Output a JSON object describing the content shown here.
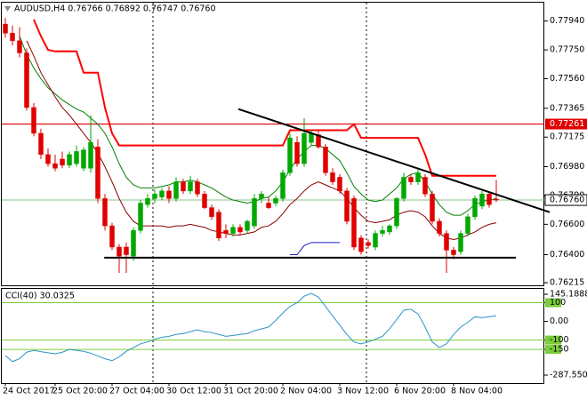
{
  "chart_data": [
    {
      "type": "candlestick",
      "title": "AUDUSD,H4 0.76766 0.76892 0.76747 0.76760",
      "categories": [
        "24 Oct 2017",
        null,
        null,
        null,
        null,
        null,
        null,
        "25 Oct 20:00",
        null,
        null,
        null,
        null,
        null,
        null,
        null,
        "27 Oct 04:00",
        null,
        null,
        null,
        null,
        null,
        null,
        null,
        "30 Oct 12:00",
        null,
        null,
        null,
        null,
        null,
        null,
        null,
        "31 Oct 20:00",
        null,
        null,
        null,
        null,
        null,
        null,
        null,
        "2 Nov 04:00",
        null,
        null,
        null,
        null,
        null,
        null,
        null,
        "3 Nov 12:00",
        null,
        null,
        null,
        null,
        null,
        null,
        null,
        "6 Nov 20:00",
        null,
        null,
        null,
        null,
        null,
        null,
        null,
        "8 Nov 04:00",
        null,
        null,
        null,
        null,
        null,
        null
      ],
      "open": [
        0.7792,
        0.7786,
        0.7781,
        0.7773,
        0.7737,
        0.772,
        0.7706,
        0.77,
        0.7703,
        0.7699,
        0.77,
        0.7697,
        0.7697,
        0.7711,
        0.7677,
        0.7659,
        0.7645,
        0.7645,
        0.7639,
        0.7656,
        0.7673,
        0.7677,
        0.7678,
        0.7682,
        0.7677,
        0.7688,
        0.7682,
        0.7688,
        0.768,
        0.7671,
        0.7668,
        0.7656,
        0.7654,
        0.7658,
        0.7656,
        0.7659,
        0.7677,
        0.7674,
        0.7674,
        0.7677,
        0.7694,
        0.7714,
        0.77,
        0.7714,
        0.7719,
        0.7711,
        0.7694,
        0.7691,
        0.7682,
        0.7677,
        0.7651,
        0.7648,
        0.7645,
        0.7654,
        0.7655,
        0.7659,
        0.7677,
        0.7691,
        0.7688,
        0.7691,
        0.768,
        0.7662,
        0.7654,
        0.7643,
        0.7642,
        0.7654,
        0.7665,
        0.7672,
        0.768,
        0.76766
      ],
      "high": [
        0.7796,
        0.7791,
        0.779,
        0.7776,
        0.774,
        0.7723,
        0.771,
        0.7706,
        0.7708,
        0.7708,
        0.7712,
        0.7711,
        0.7732,
        0.7716,
        0.768,
        0.7661,
        0.7647,
        0.7648,
        0.7658,
        0.7676,
        0.768,
        0.7683,
        0.7684,
        0.7685,
        0.7691,
        0.769,
        0.7692,
        0.769,
        0.7682,
        0.7673,
        0.767,
        0.766,
        0.766,
        0.766,
        0.7663,
        0.768,
        0.7682,
        0.7678,
        0.7679,
        0.7696,
        0.772,
        0.7718,
        0.773,
        0.7722,
        0.7722,
        0.7713,
        0.7697,
        0.7693,
        0.7684,
        0.7679,
        0.7653,
        0.765,
        0.7656,
        0.7659,
        0.766,
        0.7678,
        0.7694,
        0.7693,
        0.7696,
        0.7693,
        0.7682,
        0.7664,
        0.7656,
        0.7645,
        0.7656,
        0.7667,
        0.7679,
        0.7682,
        0.7682,
        0.76892
      ],
      "low": [
        0.7783,
        0.7778,
        0.777,
        0.7735,
        0.7718,
        0.7703,
        0.7698,
        0.7695,
        0.7697,
        0.7697,
        0.7698,
        0.7695,
        0.7694,
        0.7674,
        0.7656,
        0.7643,
        0.7628,
        0.7628,
        0.7636,
        0.7654,
        0.7671,
        0.7674,
        0.7676,
        0.7674,
        0.7675,
        0.768,
        0.768,
        0.7678,
        0.767,
        0.7663,
        0.7649,
        0.7651,
        0.7652,
        0.7653,
        0.7654,
        0.7657,
        0.7674,
        0.767,
        0.7672,
        0.7675,
        0.7692,
        0.7698,
        0.7698,
        0.7712,
        0.771,
        0.7692,
        0.7686,
        0.768,
        0.766,
        0.7643,
        0.764,
        0.7644,
        0.7643,
        0.7652,
        0.7653,
        0.7657,
        0.7675,
        0.7686,
        0.7686,
        0.7678,
        0.766,
        0.7652,
        0.7628,
        0.7637,
        0.764,
        0.7652,
        0.7663,
        0.767,
        0.7671,
        0.76747
      ],
      "close": [
        0.7786,
        0.7781,
        0.7773,
        0.7737,
        0.772,
        0.7706,
        0.77,
        0.7697,
        0.7699,
        0.7706,
        0.7708,
        0.7709,
        0.7714,
        0.7677,
        0.7659,
        0.7645,
        0.7639,
        0.764,
        0.7656,
        0.7674,
        0.7677,
        0.768,
        0.7682,
        0.7677,
        0.7688,
        0.7682,
        0.7688,
        0.768,
        0.7671,
        0.7665,
        0.7651,
        0.7654,
        0.7658,
        0.7655,
        0.7662,
        0.7677,
        0.768,
        0.7671,
        0.7677,
        0.7694,
        0.7717,
        0.77,
        0.772,
        0.772,
        0.7711,
        0.7694,
        0.7688,
        0.7682,
        0.7662,
        0.7645,
        0.7642,
        0.7646,
        0.7654,
        0.7656,
        0.7659,
        0.7677,
        0.7691,
        0.7688,
        0.7694,
        0.768,
        0.7662,
        0.7654,
        0.7643,
        0.764,
        0.7654,
        0.7665,
        0.7677,
        0.768,
        0.7673,
        0.7676
      ],
      "up_color": "#00a800",
      "down_color": "#e00000",
      "series": [
        {
          "color": "#008000",
          "values": [
            null,
            null,
            0.7784,
            0.7772,
            0.7763,
            0.7756,
            0.775,
            0.7746,
            0.7742,
            0.7739,
            0.7736,
            0.7734,
            0.773,
            0.7726,
            0.772,
            0.7711,
            0.77,
            0.7691,
            0.7686,
            0.7684,
            0.7684,
            0.7684,
            0.7685,
            0.7686,
            0.7688,
            0.7688,
            0.7689,
            0.7688,
            0.7686,
            0.7684,
            0.7681,
            0.7678,
            0.7676,
            0.7675,
            0.7674,
            0.7675,
            0.7677,
            0.7678,
            0.7682,
            0.7688,
            0.7696,
            0.7703,
            0.7708,
            0.7712,
            0.7712,
            0.771,
            0.7706,
            0.7702,
            0.7694,
            0.7685,
            0.768,
            0.7676,
            0.7675,
            0.7676,
            0.768,
            0.7684,
            0.769,
            0.7693,
            0.7694,
            0.7688,
            0.768,
            0.7673,
            0.7668,
            0.7666,
            0.7666,
            0.7669,
            0.7673,
            0.7675,
            0.7676,
            0.7677
          ]
        },
        {
          "color": "#8b0000",
          "values": [
            null,
            null,
            null,
            0.7781,
            0.7771,
            0.776,
            0.7752,
            0.7744,
            0.7737,
            0.7732,
            0.7726,
            0.772,
            0.7714,
            0.7707,
            0.7698,
            0.7688,
            0.7677,
            0.7668,
            0.7662,
            0.7659,
            0.7659,
            0.7659,
            0.7659,
            0.7658,
            0.7659,
            0.7659,
            0.766,
            0.7659,
            0.7658,
            0.7656,
            0.7655,
            0.7654,
            0.7653,
            0.7653,
            0.7654,
            0.7655,
            0.7658,
            0.7659,
            0.7662,
            0.7667,
            0.7673,
            0.7677,
            0.7682,
            0.7686,
            0.7688,
            0.7686,
            0.7684,
            0.7682,
            0.7677,
            0.7671,
            0.7666,
            0.7662,
            0.7661,
            0.7662,
            0.7663,
            0.7666,
            0.7668,
            0.7669,
            0.7668,
            0.7665,
            0.7659,
            0.7654,
            0.7651,
            0.765,
            0.7651,
            0.7653,
            0.7655,
            0.7658,
            0.766,
            0.7661
          ]
        },
        {
          "color": "#ff0000",
          "values": [
            null,
            null,
            null,
            null,
            0.7795,
            0.7784,
            0.7775,
            0.7774,
            0.7774,
            0.7774,
            0.7774,
            0.776,
            0.776,
            0.776,
            0.7737,
            0.772,
            0.7712,
            0.7712,
            0.7712,
            0.7712,
            0.7712,
            0.7712,
            0.7712,
            0.7712,
            0.7712,
            0.7712,
            0.7712,
            0.7712,
            0.7712,
            0.7712,
            0.7712,
            0.7712,
            0.7712,
            0.7712,
            0.7712,
            0.7712,
            0.7712,
            0.7712,
            0.7712,
            0.7712,
            0.7722,
            0.7722,
            0.7722,
            0.7722,
            0.7722,
            0.7722,
            0.7722,
            0.7722,
            0.7722,
            0.7726,
            0.7717,
            0.7717,
            0.7717,
            0.7717,
            0.7717,
            0.7717,
            0.7717,
            0.7717,
            0.7717,
            0.7706,
            0.7692,
            0.7692,
            0.7692,
            0.7692,
            0.7692,
            0.7692,
            0.7692,
            0.7692,
            0.7692,
            0.7692
          ]
        },
        {
          "color": "#1c1cc8",
          "values": [
            null,
            null,
            null,
            null,
            null,
            null,
            null,
            null,
            null,
            null,
            null,
            null,
            null,
            null,
            null,
            null,
            null,
            null,
            null,
            null,
            null,
            null,
            null,
            null,
            null,
            null,
            null,
            null,
            null,
            null,
            null,
            null,
            null,
            null,
            null,
            null,
            null,
            null,
            null,
            null,
            0.764,
            0.764,
            0.7646,
            0.7648,
            0.7648,
            0.7648,
            0.7648,
            0.7648,
            null,
            null,
            null,
            null,
            null,
            null,
            null,
            null,
            null,
            null,
            null,
            null,
            null,
            null,
            null,
            null,
            null,
            null,
            null,
            null,
            null,
            null
          ]
        }
      ],
      "trendlines": [
        {
          "color": "#000000",
          "from": [
            32.75,
            0.7736
          ],
          "to": [
            76.5,
            0.7668
          ]
        },
        {
          "color": "#000000",
          "from": [
            13.9,
            0.7638
          ],
          "to": [
            71.75,
            0.7638
          ]
        }
      ],
      "levels": [
        {
          "value": 0.77261,
          "color": "#e00000"
        }
      ],
      "last_price": {
        "value": 0.7676,
        "label": "0.76760",
        "color": "#8fbf8f"
      },
      "ylim": [
        0.76192,
        0.78067
      ],
      "yticks": [
        {
          "value": 0.7794,
          "label": "0.77940"
        },
        {
          "value": 0.7775,
          "label": "0.77750"
        },
        {
          "value": 0.7756,
          "label": "0.77560"
        },
        0.77365,
        0.77175,
        {
          "value": 0.7698,
          "label": "0.76980"
        },
        {
          "value": 0.7679,
          "label": "0.76790"
        },
        {
          "value": 0.766,
          "label": "0.76600"
        },
        {
          "value": 0.764,
          "label": "0.76400"
        },
        0.76215
      ]
    },
    {
      "type": "line",
      "title": "CCI(40) 30.0325",
      "color": "#2a94c8",
      "values": [
        -183,
        -215,
        -200,
        -165,
        -155,
        -162,
        -168,
        -173,
        -165,
        -150,
        -155,
        -160,
        -170,
        -185,
        -200,
        -210,
        -190,
        -160,
        -140,
        -120,
        -110,
        -95,
        -85,
        -80,
        -70,
        -65,
        -55,
        -45,
        -55,
        -60,
        -70,
        -80,
        -75,
        -70,
        -65,
        -50,
        -40,
        -30,
        5,
        45,
        80,
        100,
        135,
        150,
        130,
        80,
        30,
        -20,
        -70,
        -110,
        -120,
        -110,
        -95,
        -80,
        -40,
        10,
        60,
        65,
        40,
        -30,
        -110,
        -140,
        -120,
        -70,
        -30,
        -5,
        25,
        20,
        25,
        30.0325
      ],
      "levels": [
        100,
        -100,
        -150
      ],
      "level_color": "#7ccd3a",
      "ylim": [
        -335,
        174
      ],
      "yticks": [
        145.1888,
        100,
        {
          "value": 0,
          "label": "0.00"
        },
        -100,
        -150,
        -287.5504
      ]
    }
  ]
}
